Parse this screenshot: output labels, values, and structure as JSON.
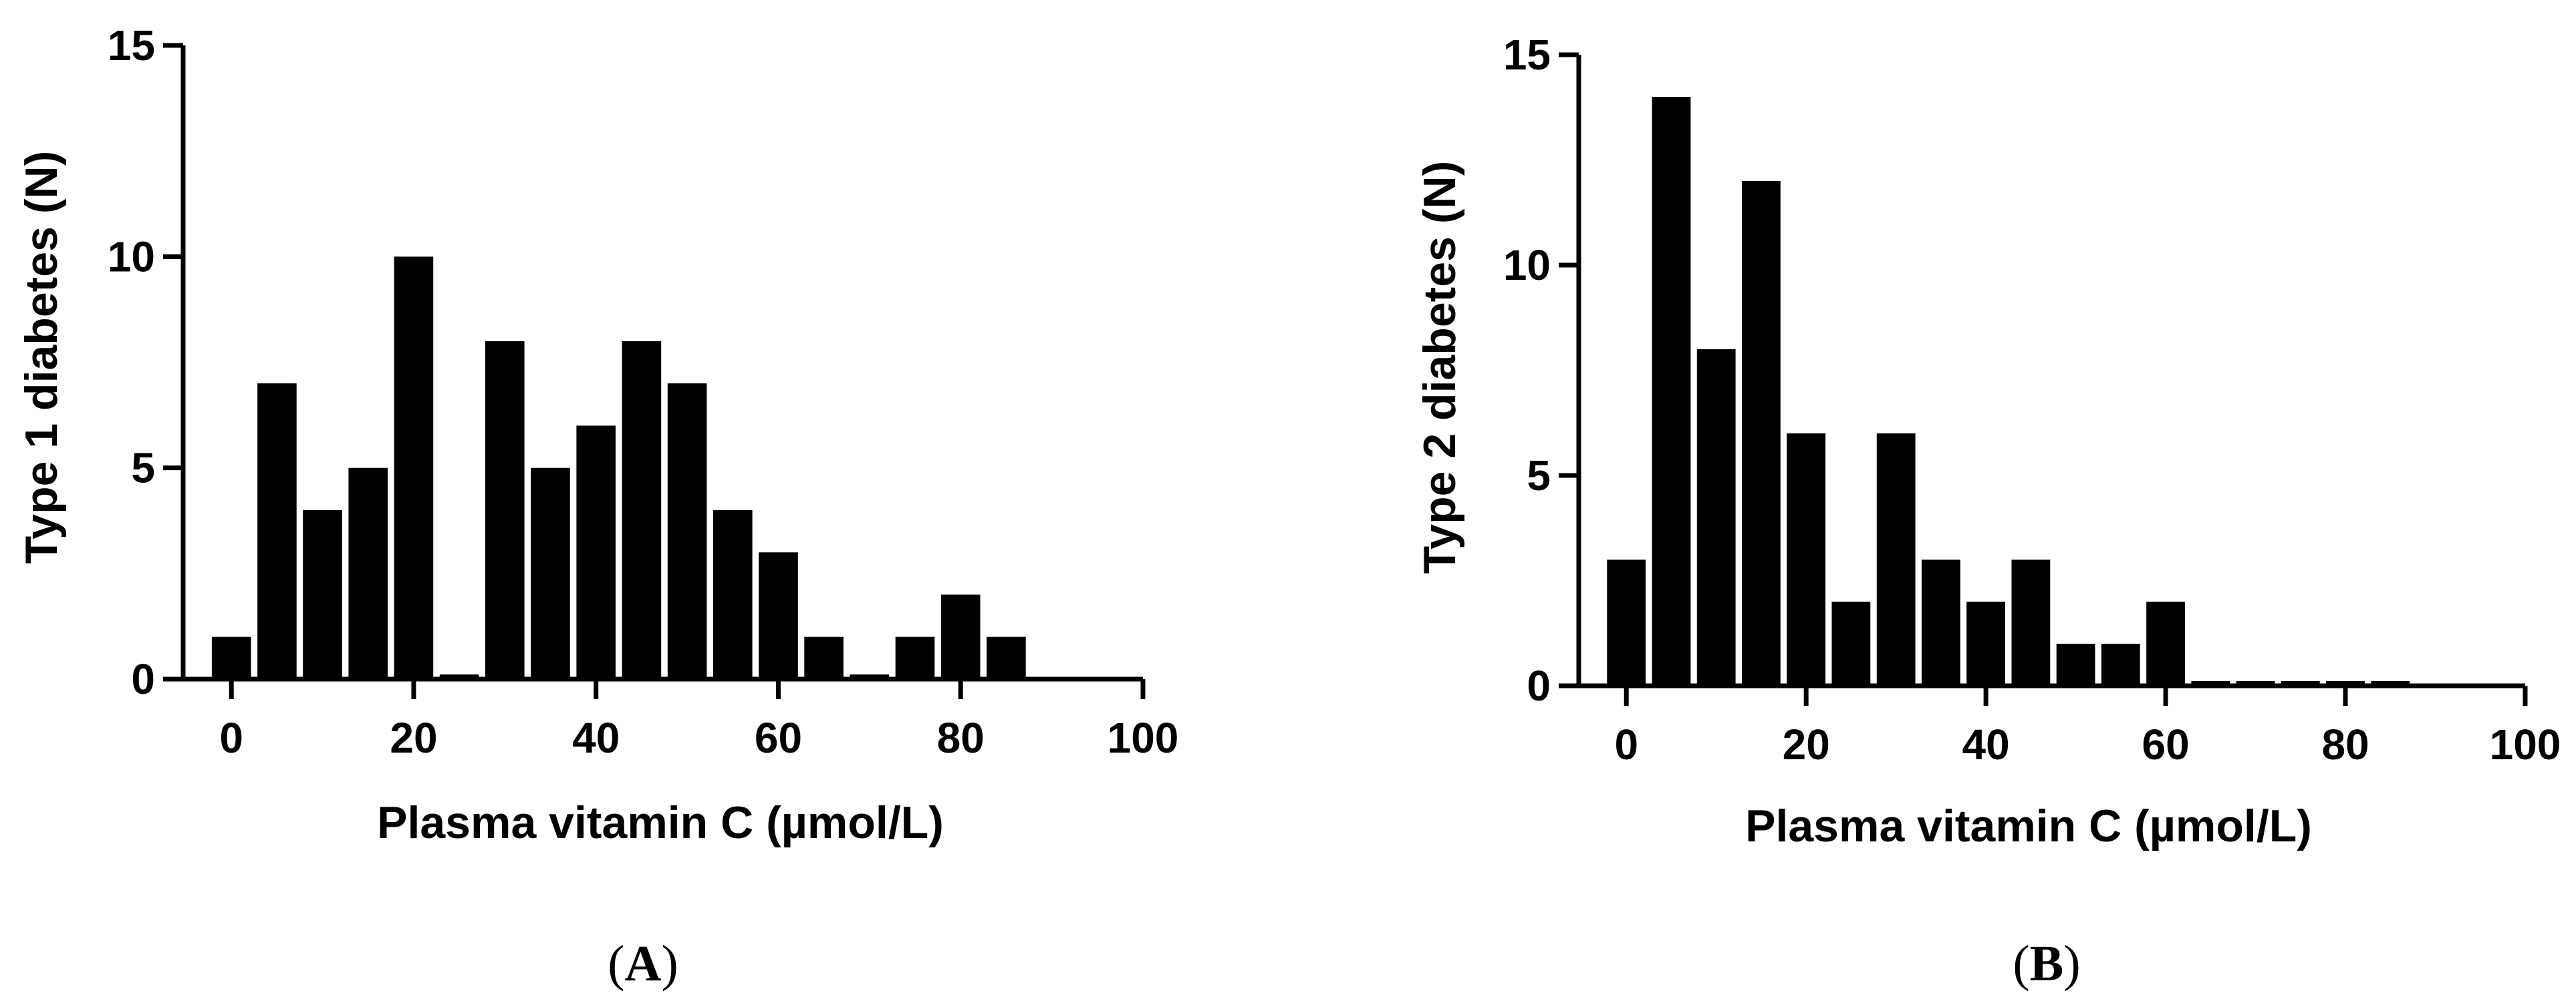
{
  "figure": {
    "panels": [
      {
        "label_open": "(",
        "label_letter": "A",
        "label_close": ")"
      },
      {
        "label_open": "(",
        "label_letter": "B",
        "label_close": ")"
      }
    ]
  },
  "chart_data": [
    {
      "type": "bar",
      "panel": "A",
      "title": "",
      "xlabel": "Plasma vitamin C (µmol/L)",
      "ylabel": "Type 1 diabetes (N)",
      "x": [
        0,
        5,
        10,
        15,
        20,
        25,
        30,
        35,
        40,
        45,
        50,
        55,
        60,
        65,
        70,
        75,
        80,
        85
      ],
      "values": [
        1,
        7,
        4,
        5,
        10,
        0,
        8,
        5,
        6,
        8,
        7,
        4,
        3,
        1,
        0,
        1,
        2,
        1
      ],
      "xlim": [
        -5,
        100
      ],
      "ylim": [
        0,
        15
      ],
      "xticks": [
        0,
        20,
        40,
        60,
        80,
        100
      ],
      "yticks": [
        0,
        5,
        10,
        15
      ],
      "xtick_labels": [
        "0",
        "20",
        "40",
        "60",
        "80",
        "100"
      ],
      "ytick_labels": [
        "0",
        "5",
        "10",
        "15"
      ],
      "grid": false,
      "legend": "none"
    },
    {
      "type": "bar",
      "panel": "B",
      "title": "",
      "xlabel": "Plasma vitamin C (µmol/L)",
      "ylabel": "Type 2 diabetes (N)",
      "x": [
        0,
        5,
        10,
        15,
        20,
        25,
        30,
        35,
        40,
        45,
        50,
        55,
        60,
        65,
        70,
        75,
        80,
        85
      ],
      "values": [
        3,
        14,
        8,
        12,
        6,
        2,
        6,
        3,
        2,
        3,
        1,
        1,
        2,
        0,
        0,
        0,
        0,
        0
      ],
      "xlim": [
        -5,
        100
      ],
      "ylim": [
        0,
        15
      ],
      "xticks": [
        0,
        20,
        40,
        60,
        80,
        100
      ],
      "yticks": [
        0,
        5,
        10,
        15
      ],
      "xtick_labels": [
        "0",
        "20",
        "40",
        "60",
        "80",
        "100"
      ],
      "ytick_labels": [
        "0",
        "5",
        "10",
        "15"
      ],
      "grid": false,
      "legend": "none"
    }
  ]
}
